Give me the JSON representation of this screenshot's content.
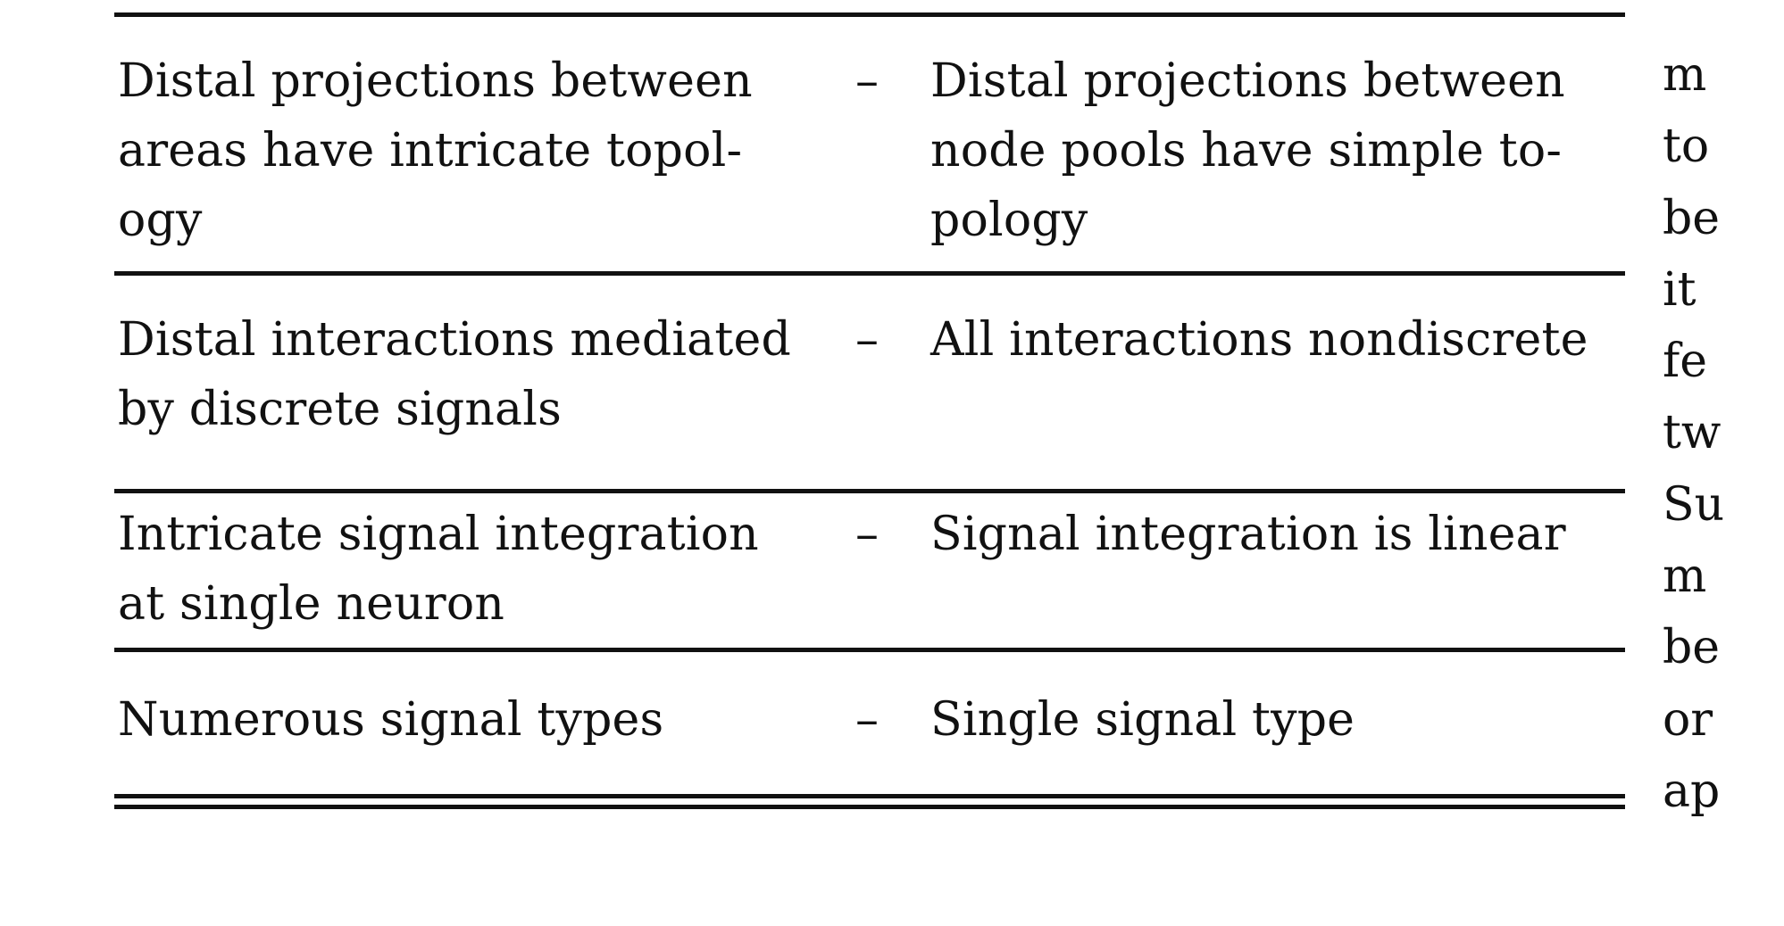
{
  "table": {
    "rows": [
      {
        "left": "Distal projections between\nareas have intricate topol-\nogy",
        "dash": "–",
        "right": "Distal projections between\nnode pools have simple to-\npology"
      },
      {
        "left": "Distal interactions mediated\nby discrete signals",
        "dash": "–",
        "right": "All interactions nondiscrete"
      },
      {
        "left": "Intricate signal integration\nat single neuron",
        "dash": "–",
        "right": "Signal integration is linear"
      },
      {
        "left": "Numerous signal types",
        "dash": "–",
        "right": "Single signal type"
      }
    ]
  },
  "side_text": {
    "lines": [
      "m",
      "to",
      "be",
      "it",
      "fe",
      "tw",
      "Su",
      "m",
      "be",
      "or",
      "ap"
    ]
  }
}
